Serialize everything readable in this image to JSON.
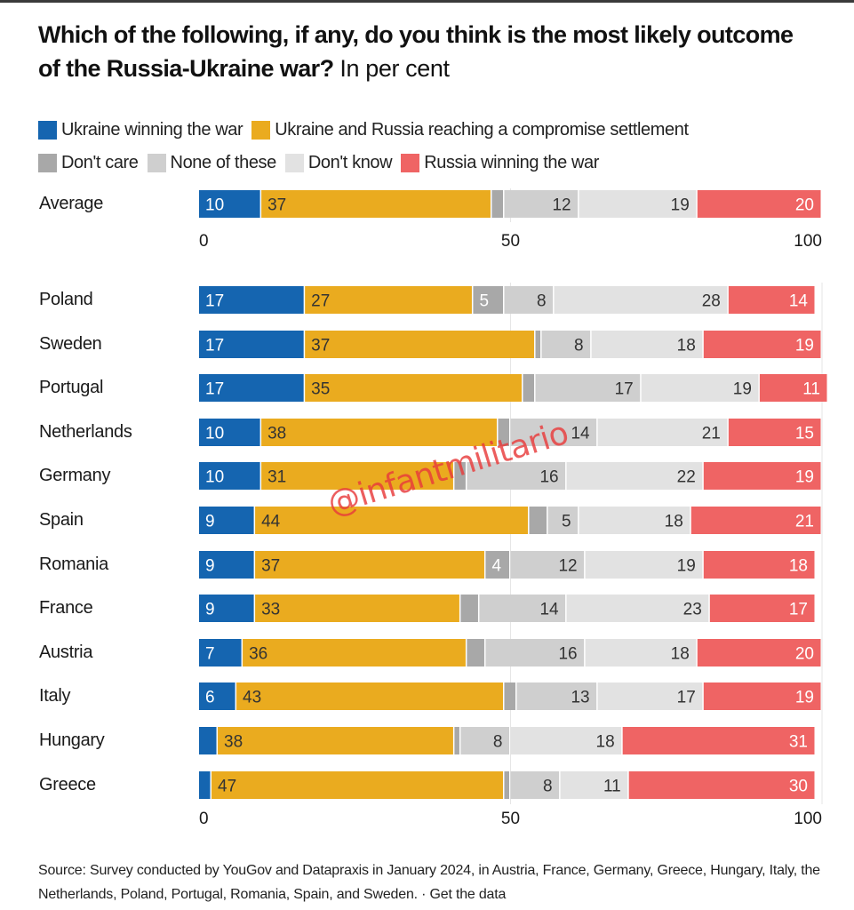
{
  "title": {
    "bold": "Which of the following, if any, do you think is the most likely outcome of the Russia-Ukraine war?",
    "subtitle": "In per cent"
  },
  "legend": [
    {
      "label": "Ukraine winning the war",
      "color": "#1565b0"
    },
    {
      "label": "Ukraine and Russia reaching a compromise settlement",
      "color": "#eaab1f"
    },
    {
      "label": "Don't care",
      "color": "#a8a8a8"
    },
    {
      "label": "None of these",
      "color": "#cfcfcf"
    },
    {
      "label": "Don't know",
      "color": "#e2e2e2"
    },
    {
      "label": "Russia winning the war",
      "color": "#ef6464"
    }
  ],
  "watermark": "@infantmilitario",
  "source": "Source: Survey conducted by YouGov and Datapraxis in January 2024, in Austria, France, Germany, Greece, Hungary, Italy, the Netherlands, Poland, Portugal, Romania, Spain, and Sweden. · Get the data",
  "chart_data": {
    "type": "bar",
    "orientation": "horizontal",
    "stacked": true,
    "title": "Which of the following, if any, do you think is the most likely outcome of the Russia-Ukraine war? In per cent",
    "xlabel": "",
    "ylabel": "",
    "xlim": [
      0,
      100
    ],
    "xticks": [
      0,
      50,
      100
    ],
    "grid": "vertical at 50 and 100",
    "legend_position": "top-left",
    "label_colors": {
      "light": "#ffffff",
      "dark": "#333333"
    },
    "series": [
      {
        "name": "Ukraine winning the war",
        "color": "#1565b0",
        "label_color": "light"
      },
      {
        "name": "Ukraine and Russia reaching a compromise settlement",
        "color": "#eaab1f",
        "label_color": "dark"
      },
      {
        "name": "Don't care",
        "color": "#a8a8a8",
        "label_color": "light"
      },
      {
        "name": "None of these",
        "color": "#cfcfcf",
        "label_color": "dark"
      },
      {
        "name": "Don't know",
        "color": "#e2e2e2",
        "label_color": "dark"
      },
      {
        "name": "Russia winning the war",
        "color": "#ef6464",
        "label_color": "light"
      }
    ],
    "average": {
      "category": "Average",
      "values": [
        10,
        37,
        2,
        12,
        19,
        20
      ],
      "labels": [
        "10",
        "37",
        "",
        "12",
        "19",
        "20"
      ]
    },
    "categories": [
      "Poland",
      "Sweden",
      "Portugal",
      "Netherlands",
      "Germany",
      "Spain",
      "Romania",
      "France",
      "Austria",
      "Italy",
      "Hungary",
      "Greece"
    ],
    "rows": [
      {
        "values": [
          17,
          27,
          5,
          8,
          28,
          14
        ],
        "labels": [
          "17",
          "27",
          "5",
          "8",
          "28",
          "14"
        ]
      },
      {
        "values": [
          17,
          37,
          1,
          8,
          18,
          19
        ],
        "labels": [
          "17",
          "37",
          "",
          "8",
          "18",
          "19"
        ]
      },
      {
        "values": [
          17,
          35,
          2,
          17,
          19,
          11
        ],
        "labels": [
          "17",
          "35",
          "",
          "17",
          "19",
          "11"
        ]
      },
      {
        "values": [
          10,
          38,
          2,
          14,
          21,
          15
        ],
        "labels": [
          "10",
          "38",
          "",
          "14",
          "21",
          "15"
        ]
      },
      {
        "values": [
          10,
          31,
          2,
          16,
          22,
          19
        ],
        "labels": [
          "10",
          "31",
          "",
          "16",
          "22",
          "19"
        ]
      },
      {
        "values": [
          9,
          44,
          3,
          5,
          18,
          21
        ],
        "labels": [
          "9",
          "44",
          "",
          "5",
          "18",
          "21"
        ]
      },
      {
        "values": [
          9,
          37,
          4,
          12,
          19,
          18
        ],
        "labels": [
          "9",
          "37",
          "4",
          "12",
          "19",
          "18"
        ]
      },
      {
        "values": [
          9,
          33,
          3,
          14,
          23,
          17
        ],
        "labels": [
          "9",
          "33",
          "",
          "14",
          "23",
          "17"
        ]
      },
      {
        "values": [
          7,
          36,
          3,
          16,
          18,
          20
        ],
        "labels": [
          "7",
          "36",
          "",
          "16",
          "18",
          "20"
        ]
      },
      {
        "values": [
          6,
          43,
          2,
          13,
          17,
          19
        ],
        "labels": [
          "6",
          "43",
          "",
          "13",
          "17",
          "19"
        ]
      },
      {
        "values": [
          3,
          38,
          1,
          8,
          18,
          31
        ],
        "labels": [
          "",
          "38",
          "",
          "8",
          "18",
          "31"
        ]
      },
      {
        "values": [
          2,
          47,
          1,
          8,
          11,
          30
        ],
        "labels": [
          "",
          "47",
          "",
          "8",
          "11",
          "30"
        ]
      }
    ]
  }
}
